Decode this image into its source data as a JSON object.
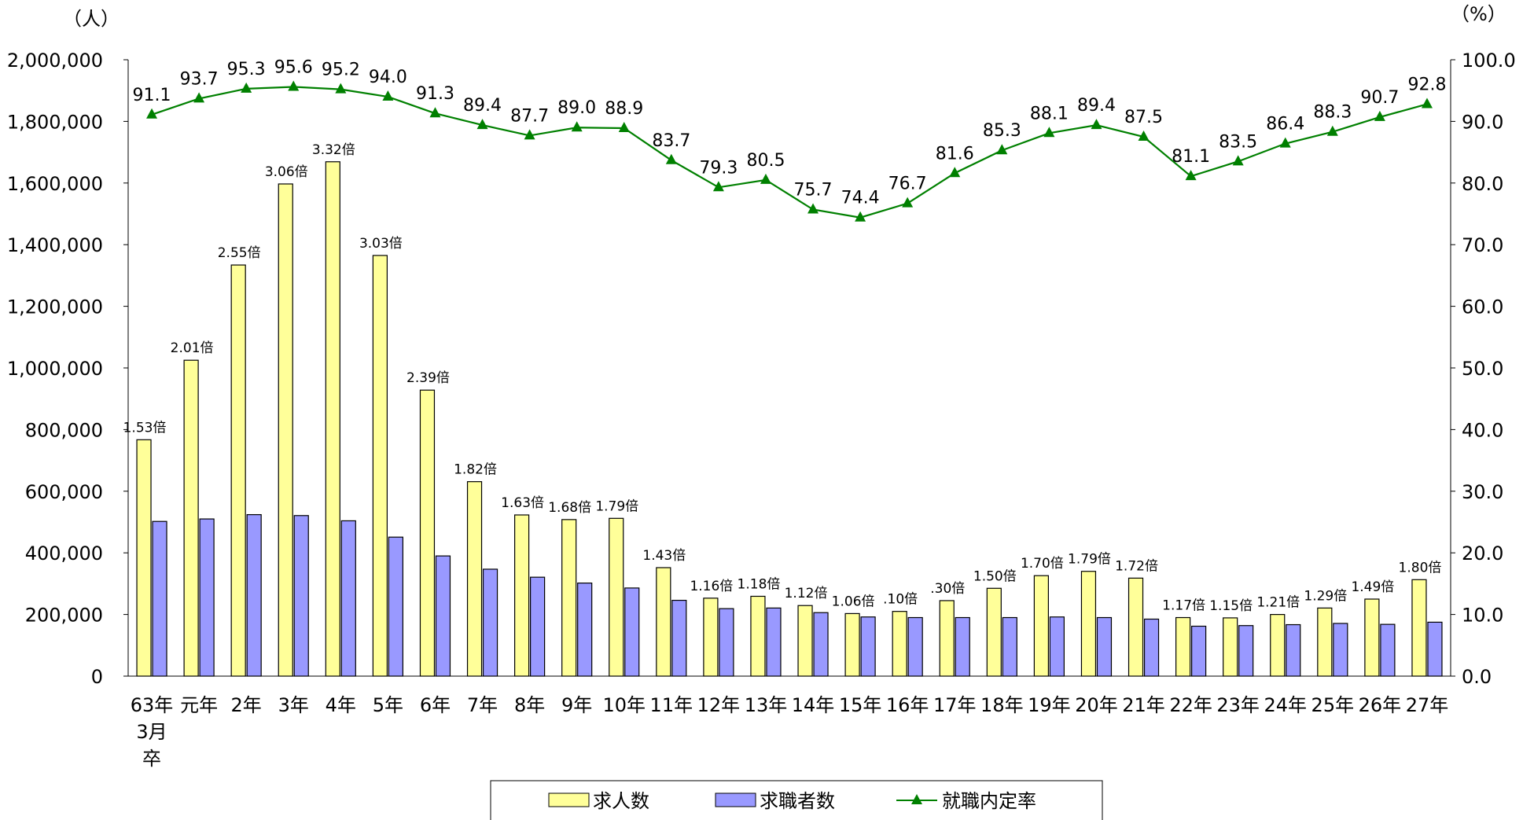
{
  "chart_data": {
    "type": "bar",
    "left_unit": "（人）",
    "right_unit": "（%）",
    "categories": [
      "63年\n3月\n卒",
      "元年",
      "2年",
      "3年",
      "4年",
      "5年",
      "6年",
      "7年",
      "8年",
      "9年",
      "10年",
      "11年",
      "12年",
      "13年",
      "14年",
      "15年",
      "16年",
      "17年",
      "18年",
      "19年",
      "20年",
      "21年",
      "22年",
      "23年",
      "24年",
      "25年",
      "26年",
      "27年"
    ],
    "series": [
      {
        "name": "求人数",
        "axis": "left",
        "color": "#ffff99",
        "values": [
          767000,
          1025000,
          1334000,
          1597000,
          1669000,
          1365000,
          928000,
          631000,
          523000,
          508000,
          512000,
          352000,
          253000,
          259000,
          229000,
          203000,
          210000,
          245000,
          285000,
          326000,
          340000,
          318000,
          190000,
          189000,
          200000,
          221000,
          250000,
          313000
        ]
      },
      {
        "name": "求職者数",
        "axis": "left",
        "color": "#9999ff",
        "values": [
          502000,
          510000,
          524000,
          521000,
          504000,
          451000,
          390000,
          347000,
          321000,
          302000,
          286000,
          246000,
          219000,
          221000,
          206000,
          192000,
          190000,
          190000,
          190000,
          192000,
          190000,
          185000,
          162000,
          164000,
          167000,
          171000,
          168000,
          175000
        ]
      },
      {
        "name": "就職内定率",
        "axis": "right",
        "color": "#008000",
        "type": "line",
        "values": [
          91.1,
          93.7,
          95.3,
          95.6,
          95.2,
          94.0,
          91.3,
          89.4,
          87.7,
          89.0,
          88.9,
          83.7,
          79.3,
          80.5,
          75.7,
          74.4,
          76.7,
          81.6,
          85.3,
          88.1,
          89.4,
          87.5,
          81.1,
          83.5,
          86.4,
          88.3,
          90.7,
          92.8
        ]
      }
    ],
    "ratio_labels": [
      "1.53倍",
      "2.01倍",
      "2.55倍",
      "3.06倍",
      "3.32倍",
      "3.03倍",
      "2.39倍",
      "1.82倍",
      "1.63倍",
      "1.68倍",
      "1.79倍",
      "1.43倍",
      "1.16倍",
      "1.18倍",
      "1.12倍",
      "1.06倍",
      ".10倍",
      ".30倍",
      "1.50倍",
      "1.70倍",
      "1.79倍",
      "1.72倍",
      "1.17倍",
      "1.15倍",
      "1.21倍",
      "1.29倍",
      "1.49倍",
      "1.80倍"
    ],
    "y_left": {
      "min": 0,
      "max": 2000000,
      "step": 200000,
      "tick_labels": [
        "0",
        "200,000",
        "400,000",
        "600,000",
        "800,000",
        "1,000,000",
        "1,200,000",
        "1,400,000",
        "1,600,000",
        "1,800,000",
        "2,000,000"
      ]
    },
    "y_right": {
      "min": 0,
      "max": 100,
      "step": 10,
      "tick_labels": [
        "0.0",
        "10.0",
        "20.0",
        "30.0",
        "40.0",
        "50.0",
        "60.0",
        "70.0",
        "80.0",
        "90.0",
        "100.0"
      ]
    },
    "grid": false,
    "legend_position": "bottom",
    "legend": [
      "求人数",
      "求職者数",
      "就職内定率"
    ]
  }
}
